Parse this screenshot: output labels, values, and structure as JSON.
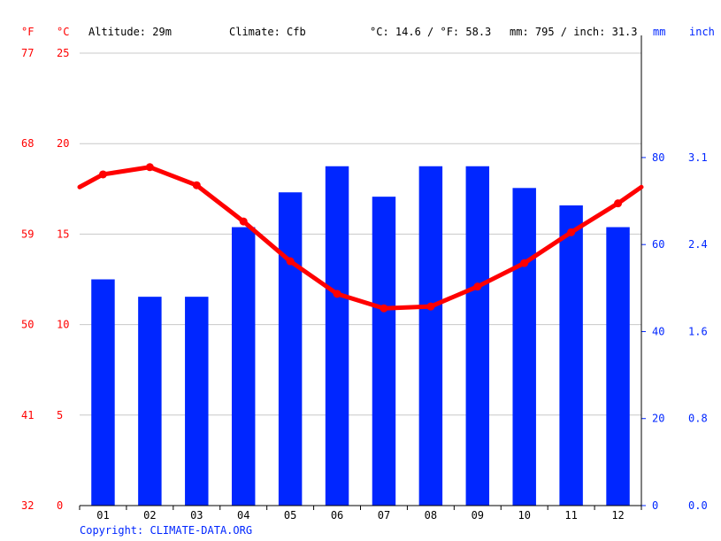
{
  "header": {
    "altitude": "Altitude: 29m",
    "climate": "Climate: Cfb",
    "temp_avg": "°C: 14.6 / °F: 58.3",
    "precip_total": "mm: 795 / inch: 31.3"
  },
  "units": {
    "f": "°F",
    "c": "°C",
    "mm": "mm",
    "inch": "inch"
  },
  "copyright": "Copyright: CLIMATE-DATA.ORG",
  "colors": {
    "temperature": "#ff0000",
    "precipitation": "#0026ff",
    "grid": "#c8c8c8"
  },
  "chart_data": {
    "type": "bar",
    "categories": [
      "01",
      "02",
      "03",
      "04",
      "05",
      "06",
      "07",
      "08",
      "09",
      "10",
      "11",
      "12"
    ],
    "series": [
      {
        "type": "bar",
        "axis": "right-mm",
        "values": [
          52,
          48,
          48,
          64,
          72,
          78,
          71,
          78,
          78,
          73,
          69,
          64
        ]
      },
      {
        "type": "line",
        "axis": "left-c",
        "values": [
          18.3,
          18.7,
          17.7,
          15.7,
          13.5,
          11.7,
          10.9,
          11.0,
          12.1,
          13.4,
          15.1,
          16.7
        ],
        "edge_values": [
          17.6,
          17.6
        ]
      }
    ],
    "y_left_c": {
      "range": [
        0,
        25
      ],
      "ticks": [
        "0",
        "5",
        "10",
        "15",
        "20",
        "25"
      ]
    },
    "y_left_f": {
      "ticks": [
        "32",
        "41",
        "50",
        "59",
        "68",
        "77"
      ]
    },
    "y_right_mm": {
      "range": [
        0,
        104
      ],
      "ticks": [
        "0",
        "20",
        "40",
        "60",
        "80"
      ]
    },
    "y_right_inch": {
      "ticks": [
        "0.0",
        "0.8",
        "1.6",
        "2.4",
        "3.1"
      ]
    },
    "grid": true
  }
}
